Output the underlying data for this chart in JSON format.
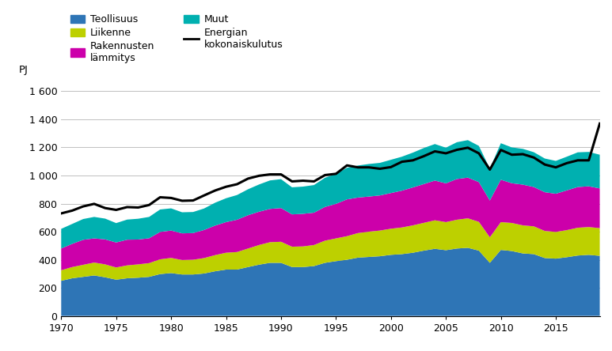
{
  "years": [
    1970,
    1971,
    1972,
    1973,
    1974,
    1975,
    1976,
    1977,
    1978,
    1979,
    1980,
    1981,
    1982,
    1983,
    1984,
    1985,
    1986,
    1987,
    1988,
    1989,
    1990,
    1991,
    1992,
    1993,
    1994,
    1995,
    1996,
    1997,
    1998,
    1999,
    2000,
    2001,
    2002,
    2003,
    2004,
    2005,
    2006,
    2007,
    2008,
    2009,
    2010,
    2011,
    2012,
    2013,
    2014,
    2015,
    2016,
    2017,
    2018,
    2019
  ],
  "teollisuus": [
    250,
    268,
    278,
    288,
    275,
    258,
    268,
    272,
    278,
    298,
    305,
    295,
    295,
    302,
    318,
    330,
    330,
    348,
    365,
    378,
    378,
    348,
    348,
    355,
    378,
    390,
    400,
    415,
    420,
    425,
    435,
    440,
    450,
    465,
    478,
    468,
    480,
    485,
    465,
    378,
    470,
    462,
    445,
    440,
    412,
    408,
    418,
    430,
    435,
    428
  ],
  "liikenne": [
    75,
    80,
    86,
    92,
    92,
    87,
    92,
    95,
    98,
    105,
    108,
    103,
    105,
    110,
    115,
    120,
    125,
    132,
    140,
    147,
    150,
    145,
    147,
    150,
    158,
    162,
    168,
    175,
    180,
    183,
    186,
    190,
    195,
    198,
    203,
    200,
    205,
    210,
    205,
    182,
    198,
    200,
    200,
    198,
    193,
    190,
    193,
    198,
    198,
    197
  ],
  "rakennusten_lammitys": [
    155,
    165,
    178,
    172,
    178,
    178,
    183,
    177,
    177,
    195,
    195,
    190,
    190,
    200,
    210,
    218,
    230,
    237,
    237,
    237,
    240,
    230,
    232,
    230,
    240,
    246,
    262,
    253,
    250,
    250,
    254,
    262,
    270,
    276,
    283,
    276,
    290,
    290,
    283,
    262,
    302,
    283,
    290,
    280,
    276,
    272,
    283,
    290,
    290,
    283
  ],
  "muut": [
    140,
    142,
    148,
    153,
    148,
    138,
    143,
    148,
    152,
    160,
    158,
    150,
    150,
    153,
    163,
    170,
    176,
    185,
    194,
    203,
    206,
    193,
    194,
    197,
    208,
    213,
    225,
    228,
    232,
    232,
    237,
    242,
    248,
    257,
    260,
    254,
    262,
    267,
    258,
    227,
    260,
    255,
    255,
    248,
    240,
    234,
    240,
    247,
    245,
    240
  ],
  "energian_kokonaiskulutus": [
    730,
    750,
    780,
    798,
    768,
    755,
    775,
    772,
    790,
    845,
    840,
    820,
    822,
    858,
    893,
    920,
    938,
    978,
    998,
    1008,
    1008,
    958,
    963,
    958,
    1003,
    1012,
    1072,
    1058,
    1058,
    1048,
    1060,
    1098,
    1108,
    1138,
    1172,
    1158,
    1183,
    1198,
    1158,
    1042,
    1182,
    1148,
    1152,
    1128,
    1078,
    1058,
    1088,
    1108,
    1108,
    1370
  ],
  "teollisuus_color": "#2e75b6",
  "liikenne_color": "#bdd000",
  "rakennusten_lammitys_color": "#cc00aa",
  "muut_color": "#00b0b0",
  "line_color": "#000000",
  "ylabel": "PJ",
  "ylim": [
    0,
    1700
  ],
  "yticks": [
    0,
    200,
    400,
    600,
    800,
    1000,
    1200,
    1400,
    1600
  ],
  "ytick_labels": [
    "0",
    "200",
    "400",
    "600",
    "800",
    "1 000",
    "1 200",
    "1 400",
    "1 600"
  ],
  "xticks": [
    1970,
    1975,
    1980,
    1985,
    1990,
    1995,
    2000,
    2005,
    2010,
    2015
  ],
  "legend_teollisuus": "Teollisuus",
  "legend_liikenne": "Liikenne",
  "legend_rakennusten": "Rakennusten\nlämmitys",
  "legend_muut": "Muut",
  "legend_energian": "Energian\nkokonaiskulutus",
  "grid_color": "#c0c0c0",
  "background_color": "#ffffff"
}
